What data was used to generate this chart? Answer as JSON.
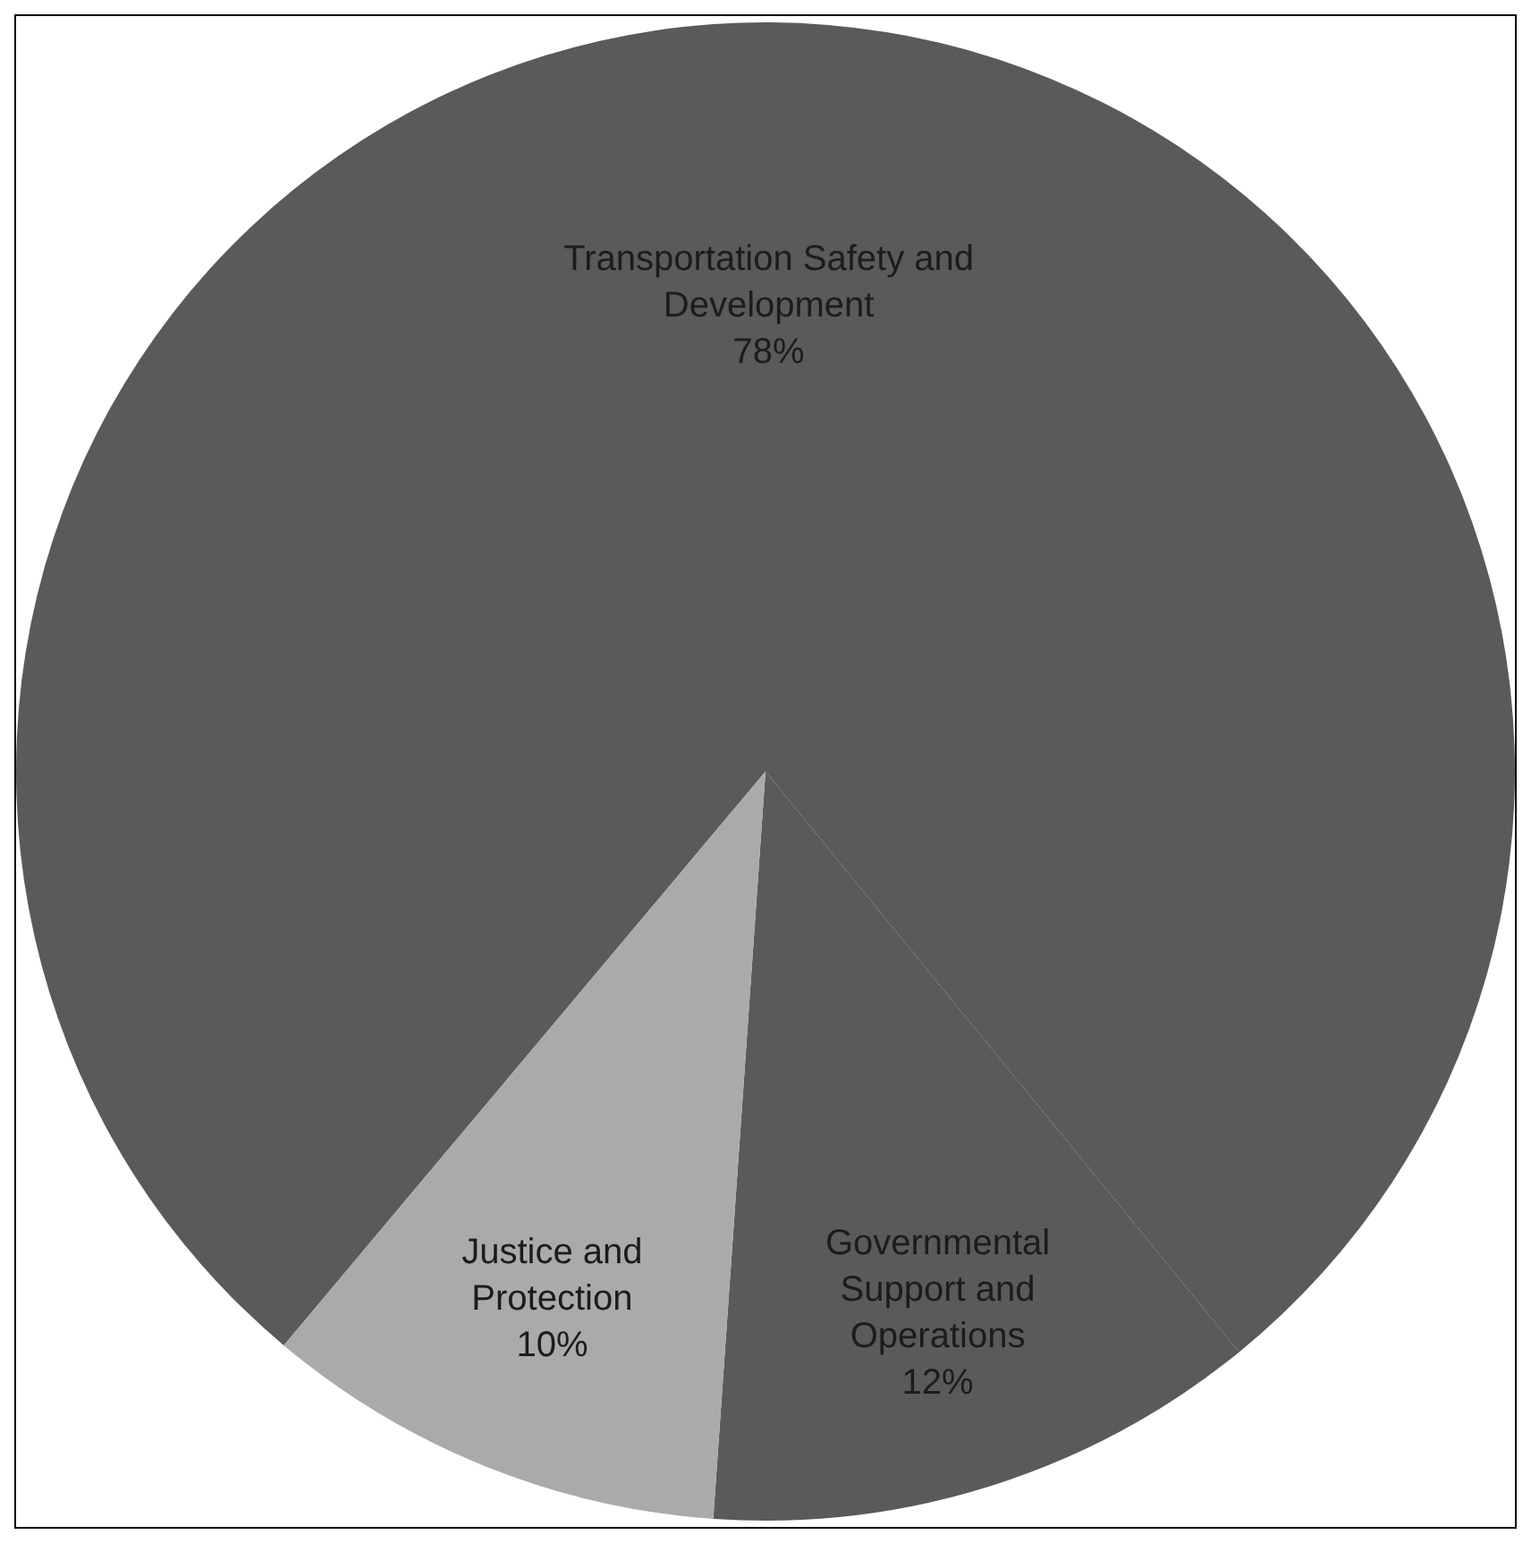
{
  "chart_data": {
    "type": "pie",
    "categories": [
      "Transportation Safety and Development",
      "Governmental Support and Operations",
      "Justice and Protection"
    ],
    "values": [
      78,
      12,
      10
    ],
    "value_labels": [
      "78%",
      "12%",
      "10%"
    ],
    "colors": [
      "#5a5a5a",
      "#5a5a5a",
      "#aaaaaa"
    ],
    "legend": false
  }
}
